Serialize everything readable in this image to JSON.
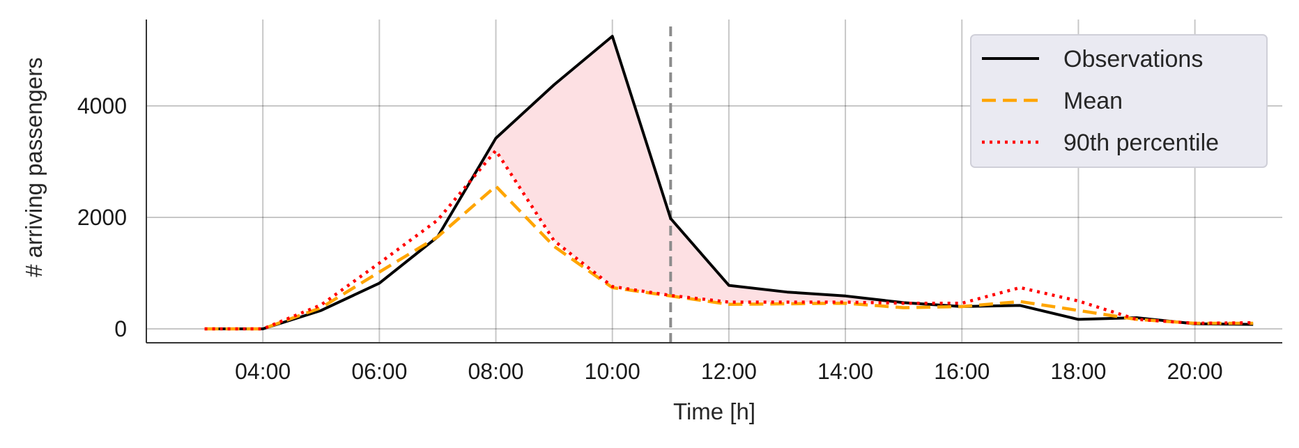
{
  "chart_data": {
    "type": "line",
    "title": "",
    "xlabel": "Time [h]",
    "ylabel": "# arriving passengers",
    "xlim": [
      2.0,
      21.5
    ],
    "ylim": [
      -250,
      5550
    ],
    "x_ticks": [
      4,
      6,
      8,
      10,
      12,
      14,
      16,
      18,
      20
    ],
    "x_tick_labels": [
      "04:00",
      "06:00",
      "08:00",
      "10:00",
      "12:00",
      "14:00",
      "16:00",
      "18:00",
      "20:00"
    ],
    "y_ticks": [
      0,
      2000,
      4000
    ],
    "y_tick_labels": [
      "0",
      "2000",
      "4000"
    ],
    "grid": true,
    "legend_position": "top-right",
    "vertical_line": {
      "x": 11,
      "style": "dashed",
      "color": "#8c8c8c"
    },
    "fill_between": {
      "upper": "Observations",
      "lower": "90th percentile",
      "color": "#fde0e3"
    },
    "x": [
      3,
      4,
      5,
      6,
      7,
      8,
      9,
      10,
      11,
      12,
      13,
      14,
      15,
      16,
      17,
      18,
      19,
      20,
      21
    ],
    "series": [
      {
        "name": "Observations",
        "color": "#000000",
        "style": "solid",
        "values": [
          0,
          0,
          330,
          820,
          1650,
          3420,
          4380,
          5250,
          1980,
          780,
          660,
          590,
          470,
          400,
          420,
          170,
          200,
          90,
          80
        ]
      },
      {
        "name": "Mean",
        "color": "#ffa500",
        "style": "dashed",
        "values": [
          0,
          0,
          380,
          1020,
          1650,
          2560,
          1480,
          740,
          590,
          440,
          450,
          460,
          380,
          400,
          490,
          330,
          170,
          100,
          100
        ]
      },
      {
        "name": "90th percentile",
        "color": "#ff0000",
        "style": "dotted",
        "values": [
          0,
          0,
          430,
          1180,
          1950,
          3200,
          1580,
          760,
          600,
          480,
          480,
          480,
          460,
          460,
          740,
          500,
          170,
          100,
          110
        ]
      }
    ]
  }
}
